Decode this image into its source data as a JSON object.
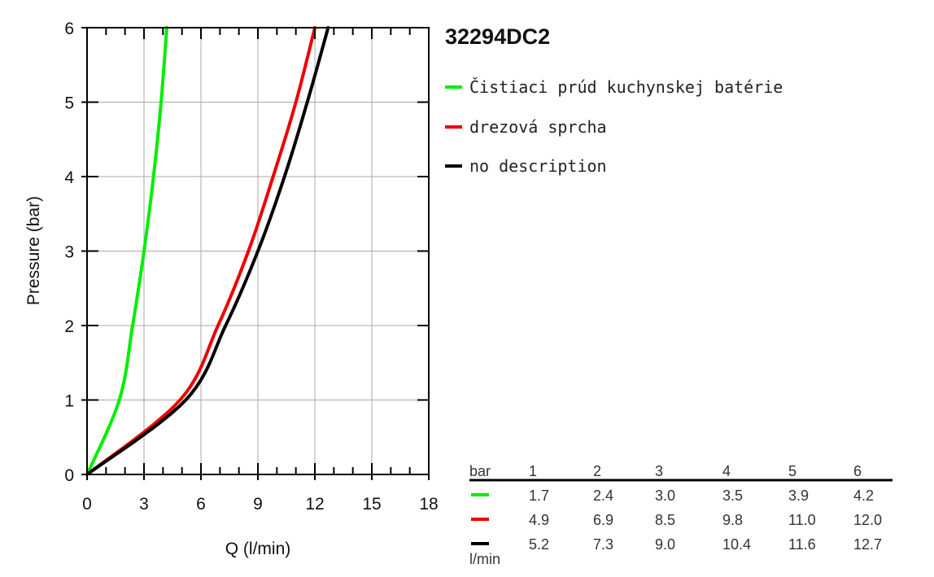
{
  "chart_data": {
    "type": "line",
    "title": "32294DC2",
    "xlabel": "Q (l/min)",
    "ylabel": "Pressure (bar)",
    "xlim": [
      0,
      18
    ],
    "ylim": [
      0,
      6
    ],
    "x_ticks": [
      "0",
      "3",
      "6",
      "9",
      "12",
      "15",
      "18"
    ],
    "y_ticks": [
      "0",
      "1",
      "2",
      "3",
      "4",
      "5",
      "6"
    ],
    "grid": true,
    "legend_position": "right",
    "series": [
      {
        "name": "Čistiaci prúd kuchynskej batérie",
        "color": "#00ee00",
        "points": [
          [
            0,
            0
          ],
          [
            1.7,
            1
          ],
          [
            2.4,
            2
          ],
          [
            3.0,
            3
          ],
          [
            3.5,
            4
          ],
          [
            3.9,
            5
          ],
          [
            4.2,
            6
          ]
        ]
      },
      {
        "name": "drezová sprcha",
        "color": "#ee0000",
        "points": [
          [
            0,
            0
          ],
          [
            4.9,
            1
          ],
          [
            6.9,
            2
          ],
          [
            8.5,
            3
          ],
          [
            9.8,
            4
          ],
          [
            11.0,
            5
          ],
          [
            12.0,
            6
          ]
        ]
      },
      {
        "name": "no description",
        "color": "#000000",
        "points": [
          [
            0,
            0
          ],
          [
            5.2,
            1
          ],
          [
            7.3,
            2
          ],
          [
            9.0,
            3
          ],
          [
            10.4,
            4
          ],
          [
            11.6,
            5
          ],
          [
            12.7,
            6
          ]
        ]
      }
    ]
  },
  "table": {
    "unit_bar": "bar",
    "unit_flow": "l/min",
    "pressures": [
      "1",
      "2",
      "3",
      "4",
      "5",
      "6"
    ],
    "rows": [
      {
        "color": "#00ee00",
        "values": [
          "1.7",
          "2.4",
          "3.0",
          "3.5",
          "3.9",
          "4.2"
        ]
      },
      {
        "color": "#ee0000",
        "values": [
          "4.9",
          "6.9",
          "8.5",
          "9.8",
          "11.0",
          "12.0"
        ]
      },
      {
        "color": "#000000",
        "values": [
          "5.2",
          "7.3",
          "9.0",
          "10.4",
          "11.6",
          "12.7"
        ]
      }
    ]
  }
}
